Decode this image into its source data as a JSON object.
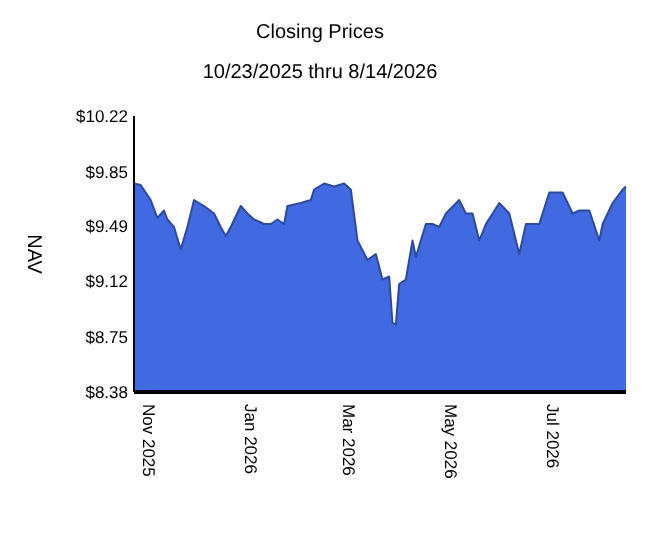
{
  "chart_data": {
    "type": "area",
    "title": "Closing Prices",
    "subtitle": "10/23/2025 thru 8/14/2026",
    "ylabel": "NAV",
    "x": [
      "2025-10-23",
      "2025-10-27",
      "2025-11-02",
      "2025-11-06",
      "2025-11-10",
      "2025-11-12",
      "2025-11-16",
      "2025-11-20",
      "2025-11-24",
      "2025-11-28",
      "2025-12-04",
      "2025-12-10",
      "2025-12-14",
      "2025-12-17",
      "2025-12-20",
      "2025-12-26",
      "2025-12-30",
      "2026-01-03",
      "2026-01-09",
      "2026-01-13",
      "2026-01-17",
      "2026-01-21",
      "2026-01-23",
      "2026-01-31",
      "2026-02-06",
      "2026-02-08",
      "2026-02-14",
      "2026-02-20",
      "2026-02-26",
      "2026-03-02",
      "2026-03-06",
      "2026-03-12",
      "2026-03-17",
      "2026-03-21",
      "2026-03-25",
      "2026-03-27",
      "2026-03-29",
      "2026-03-31",
      "2026-04-04",
      "2026-04-08",
      "2026-04-10",
      "2026-04-16",
      "2026-04-20",
      "2026-04-24",
      "2026-04-28",
      "2026-05-06",
      "2026-05-10",
      "2026-05-14",
      "2026-05-18",
      "2026-05-22",
      "2026-05-30",
      "2026-06-05",
      "2026-06-11",
      "2026-06-15",
      "2026-06-23",
      "2026-06-29",
      "2026-07-07",
      "2026-07-13",
      "2026-07-17",
      "2026-07-23",
      "2026-07-29",
      "2026-07-31",
      "2026-08-06",
      "2026-08-12",
      "2026-08-14"
    ],
    "series": [
      {
        "color": "#4169e1",
        "values": [
          9.77,
          9.76,
          9.66,
          9.54,
          9.59,
          9.53,
          9.48,
          9.33,
          9.48,
          9.66,
          9.62,
          9.57,
          9.48,
          9.42,
          9.48,
          9.62,
          9.57,
          9.53,
          9.5,
          9.5,
          9.53,
          9.5,
          9.62,
          9.64,
          9.66,
          9.73,
          9.77,
          9.75,
          9.77,
          9.73,
          9.39,
          9.26,
          9.3,
          9.13,
          9.15,
          8.84,
          8.83,
          9.1,
          9.13,
          9.39,
          9.28,
          9.5,
          9.5,
          9.48,
          9.57,
          9.66,
          9.57,
          9.57,
          9.39,
          9.5,
          9.64,
          9.57,
          9.3,
          9.5,
          9.5,
          9.71,
          9.71,
          9.57,
          9.59,
          9.59,
          9.39,
          9.5,
          9.64,
          9.73,
          9.75
        ]
      }
    ],
    "xlim": [
      "2025-10-23",
      "2026-08-14"
    ],
    "xticks": [
      {
        "value": "2025-11-01",
        "label": "Nov 2025"
      },
      {
        "value": "2026-01-01",
        "label": "Jan 2026"
      },
      {
        "value": "2026-03-01",
        "label": "Mar 2026"
      },
      {
        "value": "2026-05-01",
        "label": "May 2026"
      },
      {
        "value": "2026-07-01",
        "label": "Jul 2026"
      }
    ],
    "ylim": [
      8.38,
      10.22
    ],
    "yticks": [
      {
        "value": 8.38,
        "label": "$8.38"
      },
      {
        "value": 8.75,
        "label": "$8.75"
      },
      {
        "value": 9.12,
        "label": "$9.12"
      },
      {
        "value": 9.49,
        "label": "$9.49"
      },
      {
        "value": 9.85,
        "label": "$9.85"
      },
      {
        "value": 10.22,
        "label": "$10.22"
      }
    ]
  }
}
